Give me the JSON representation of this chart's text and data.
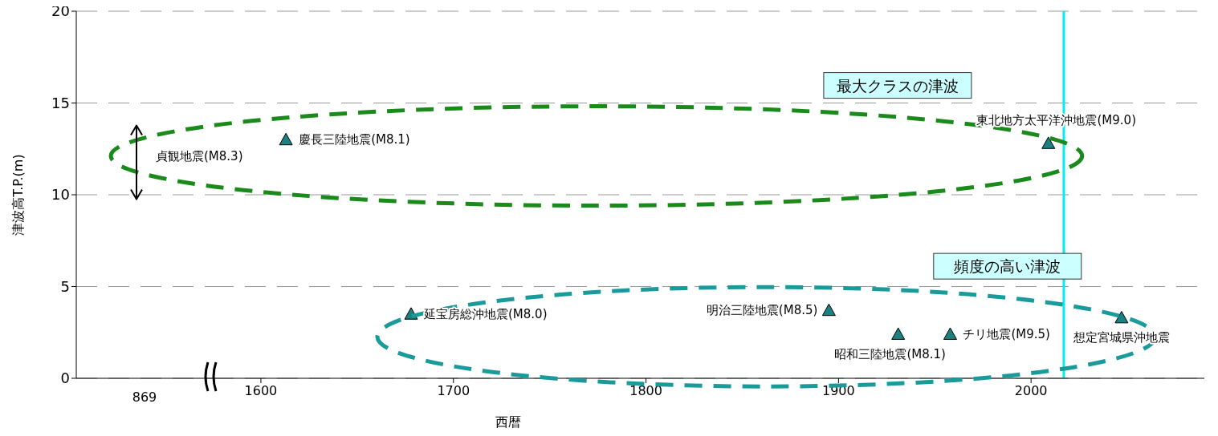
{
  "chart_data": [
    {
      "type": "scatter",
      "ylabel": "津波高T.P.(m)",
      "grid": "y",
      "categories": [
        "869"
      ],
      "ylim": [
        0,
        20
      ],
      "yticks": [
        0,
        5,
        10,
        15,
        20
      ],
      "annotations": [
        "貞観地震(M8.3)"
      ]
    },
    {
      "type": "scatter",
      "xlabel": "西暦",
      "marker": "triangle",
      "grid": "y",
      "tick_labels": "x",
      "xlim": [
        1575,
        2090
      ],
      "xticks": [
        1600,
        1700,
        1800,
        1900,
        2000
      ],
      "ylim": [
        0,
        20
      ],
      "yticks": [
        0,
        5,
        10,
        15,
        20
      ],
      "series": [
        {
          "color": "#1a8080",
          "x": [
            1613,
            2009
          ],
          "values": [
            13.0,
            12.8
          ]
        },
        {
          "color": "#1a8080",
          "x": [
            1678,
            1895,
            1931,
            1958,
            2047
          ],
          "values": [
            3.5,
            3.7,
            2.4,
            2.4,
            3.3
          ]
        }
      ],
      "ref_lines": [
        {
          "axis": "x",
          "value": 2017,
          "color": "#00eeee"
        }
      ],
      "annotations": [
        "最大クラスの津波",
        "頻度の高い津波",
        {
          "text": "慶長三陸地震(M8.1)",
          "x": 1613,
          "y": 13.0
        },
        {
          "text": "東北地方太平洋沖地震(M9.0)",
          "x": 2009,
          "y": 12.8
        },
        {
          "text": "延宝房総沖地震(M8.0)",
          "x": 1678,
          "y": 3.5
        },
        {
          "text": "明治三陸地震(M8.5)",
          "x": 1895,
          "y": 3.7
        },
        {
          "text": "昭和三陸地震(M8.1)",
          "x": 1931,
          "y": 2.4
        },
        {
          "text": "チリ地震(M9.5)",
          "x": 1958,
          "y": 2.4
        },
        {
          "text": "想定宮城県沖地震",
          "x": 2047,
          "y": 3.3
        }
      ]
    }
  ]
}
